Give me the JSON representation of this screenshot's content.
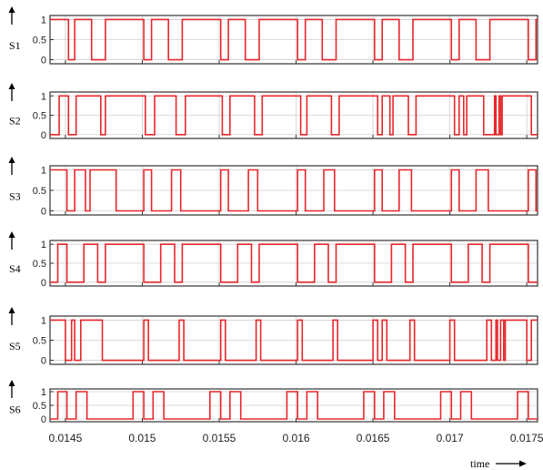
{
  "chart_data": {
    "type": "line",
    "xlabel": "time",
    "xlim": [
      0.0144,
      0.01757
    ],
    "x_ticks": [
      0.0145,
      0.015,
      0.0155,
      0.016,
      0.0165,
      0.017,
      0.0175
    ],
    "x_tick_labels": [
      "0.0145",
      "0.015",
      "0.0155",
      "0.016",
      "0.0165",
      "0.017",
      "0.0175"
    ],
    "ylim": [
      -0.1,
      1.1
    ],
    "y_ticks": [
      0,
      0.5,
      1
    ],
    "y_tick_labels": [
      "0",
      "0.5",
      "1"
    ],
    "grid": true,
    "line_color": "#e8262a",
    "subplots": [
      {
        "label": "S1",
        "transitions": [
          0.01452,
          0.01456,
          0.01467,
          0.01476,
          0.01501,
          0.01506,
          0.01517,
          0.01526,
          0.01551,
          0.01556,
          0.01567,
          0.01576,
          0.01601,
          0.01606,
          0.01617,
          0.01626,
          0.01651,
          0.01656,
          0.01667,
          0.01676,
          0.01701,
          0.01706,
          0.01717,
          0.01726,
          0.01751,
          0.01756
        ]
      },
      {
        "label": "S2",
        "transitions": [
          0.01446,
          0.01452,
          0.01457,
          0.01473,
          0.01476,
          0.01502,
          0.01508,
          0.01522,
          0.01528,
          0.01552,
          0.01557,
          0.01573,
          0.01578,
          0.01603,
          0.01607,
          0.01623,
          0.01628,
          0.01653,
          0.01656,
          0.01661,
          0.01663,
          0.01673,
          0.01678,
          0.01703,
          0.01706,
          0.01709,
          0.01711,
          0.01722,
          0.01729,
          0.0173,
          0.01732,
          0.01733,
          0.01734,
          0.01753
        ]
      },
      {
        "label": "S3",
        "transitions": [
          0.01451,
          0.01456,
          0.01463,
          0.01466,
          0.01483,
          0.01501,
          0.01506,
          0.01519,
          0.01525,
          0.01551,
          0.01556,
          0.01569,
          0.01575,
          0.01601,
          0.01606,
          0.01618,
          0.01625,
          0.01651,
          0.01656,
          0.01667,
          0.01675,
          0.01701,
          0.01706,
          0.01717,
          0.01725,
          0.01751,
          0.01756
        ]
      },
      {
        "label": "S4",
        "transitions": [
          0.01445,
          0.01451,
          0.01462,
          0.01471,
          0.01476,
          0.01501,
          0.01512,
          0.01521,
          0.01526,
          0.01551,
          0.01562,
          0.01571,
          0.01576,
          0.01601,
          0.01612,
          0.01621,
          0.01626,
          0.01651,
          0.01662,
          0.01671,
          0.01676,
          0.01701,
          0.01712,
          0.01721,
          0.01726,
          0.01751
        ]
      },
      {
        "label": "S5",
        "transitions": [
          0.0145,
          0.01454,
          0.01456,
          0.0146,
          0.01474,
          0.01501,
          0.01504,
          0.01524,
          0.01527,
          0.01551,
          0.01554,
          0.01574,
          0.01577,
          0.01601,
          0.01604,
          0.01624,
          0.01627,
          0.0165,
          0.01653,
          0.01656,
          0.01659,
          0.01674,
          0.01677,
          0.017,
          0.01703,
          0.01724,
          0.01727,
          0.0173,
          0.01731,
          0.01733,
          0.01735,
          0.01736,
          0.0175,
          0.01753
        ]
      },
      {
        "label": "S6",
        "transitions": [
          0.01445,
          0.01451,
          0.01457,
          0.01464,
          0.01494,
          0.01501,
          0.01507,
          0.01514,
          0.01544,
          0.01551,
          0.01557,
          0.01564,
          0.01594,
          0.01601,
          0.01607,
          0.01614,
          0.01644,
          0.01651,
          0.01657,
          0.01664,
          0.01694,
          0.01701,
          0.01707,
          0.01714,
          0.01744,
          0.01751
        ]
      }
    ],
    "initial_levels": [
      1,
      0,
      1,
      0,
      1,
      0
    ]
  }
}
